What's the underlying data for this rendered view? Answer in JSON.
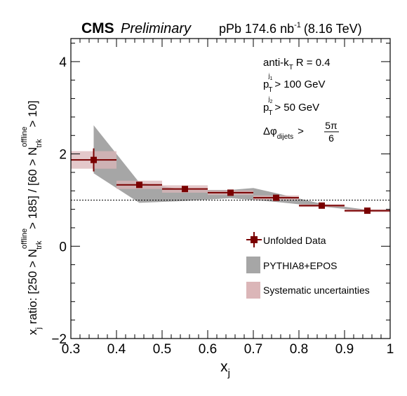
{
  "header": {
    "experiment": "CMS",
    "status": "Preliminary",
    "dataset_prefix": "pPb 174.6 nb",
    "dataset_exp": "-1",
    "energy": "(8.16 TeV)"
  },
  "annotations": {
    "algo_prefix": "anti-k",
    "algo_sub": "T",
    "algo_suffix": "R = 0.4",
    "pt1_main": "p",
    "pt1_sub": "T",
    "pt1_sup": "j",
    "pt1_supsub": "1",
    "pt1_cut": "> 100 GeV",
    "pt2_main": "p",
    "pt2_sub": "T",
    "pt2_sup": "j",
    "pt2_supsub": "2",
    "pt2_cut": "> 50 GeV",
    "dphi_main": "Δφ",
    "dphi_sub": "dijets",
    "dphi_gt": ">",
    "dphi_num": "5π",
    "dphi_den": "6"
  },
  "chart_data": {
    "type": "scatter",
    "xlabel_main": "x",
    "xlabel_sub": "j",
    "ylabel": {
      "t1": "x",
      "t1sub": "j",
      "t2": " ratio: [250 > N",
      "sup1": "offline",
      "sub1": "trk",
      "t3": " > 185] / [60 > N",
      "sup2": "offline",
      "sub2": "trk",
      "t4": " > 10]"
    },
    "xlim": [
      0.3,
      1.0
    ],
    "ylim": [
      -2,
      4.5
    ],
    "xticks": [
      0.3,
      0.4,
      0.5,
      0.6,
      0.7,
      0.8,
      0.9,
      1.0
    ],
    "xtick_labels": [
      "0.3",
      "0.4",
      "0.5",
      "0.6",
      "0.7",
      "0.8",
      "0.9",
      "1"
    ],
    "yticks": [
      -2,
      0,
      2,
      4
    ],
    "ytick_labels": [
      "−2",
      "0",
      "2",
      "4"
    ],
    "reference_line": 1.0,
    "data": {
      "name": "Unfolded Data",
      "color": "#7a0000",
      "points": [
        {
          "x": 0.35,
          "y": 1.87,
          "xerr": 0.05,
          "yerr": 0.25
        },
        {
          "x": 0.45,
          "y": 1.33,
          "xerr": 0.05,
          "yerr": 0.06
        },
        {
          "x": 0.55,
          "y": 1.24,
          "xerr": 0.05,
          "yerr": 0.05
        },
        {
          "x": 0.65,
          "y": 1.16,
          "xerr": 0.05,
          "yerr": 0.04
        },
        {
          "x": 0.75,
          "y": 1.05,
          "xerr": 0.05,
          "yerr": 0.04
        },
        {
          "x": 0.85,
          "y": 0.88,
          "xerr": 0.05,
          "yerr": 0.03
        },
        {
          "x": 0.95,
          "y": 0.77,
          "xerr": 0.05,
          "yerr": 0.03
        }
      ]
    },
    "systematics": {
      "name": "Systematic uncertainties",
      "color": "#dbb6b8",
      "boxes": [
        {
          "x0": 0.3,
          "x1": 0.4,
          "y0": 1.68,
          "y1": 2.06
        },
        {
          "x0": 0.4,
          "x1": 0.5,
          "y0": 1.24,
          "y1": 1.42
        },
        {
          "x0": 0.5,
          "x1": 0.6,
          "y0": 1.16,
          "y1": 1.32
        },
        {
          "x0": 0.6,
          "x1": 0.7,
          "y0": 1.11,
          "y1": 1.21
        },
        {
          "x0": 0.7,
          "x1": 0.8,
          "y0": 1.0,
          "y1": 1.1
        },
        {
          "x0": 0.8,
          "x1": 0.9,
          "y0": 0.85,
          "y1": 0.91
        },
        {
          "x0": 0.9,
          "x1": 1.0,
          "y0": 0.74,
          "y1": 0.8
        }
      ]
    },
    "model": {
      "name": "PYTHIA8+EPOS",
      "color": "#a6a6a6",
      "upper": [
        [
          0.35,
          2.62
        ],
        [
          0.45,
          1.38
        ],
        [
          0.55,
          1.22
        ],
        [
          0.65,
          1.22
        ],
        [
          0.7,
          1.26
        ],
        [
          0.75,
          1.15
        ],
        [
          0.85,
          0.92
        ],
        [
          0.95,
          0.79
        ],
        [
          1.0,
          0.78
        ]
      ],
      "lower": [
        [
          1.0,
          0.76
        ],
        [
          0.95,
          0.76
        ],
        [
          0.85,
          0.86
        ],
        [
          0.75,
          0.96
        ],
        [
          0.65,
          1.04
        ],
        [
          0.55,
          0.98
        ],
        [
          0.45,
          0.94
        ],
        [
          0.35,
          1.58
        ]
      ]
    }
  }
}
